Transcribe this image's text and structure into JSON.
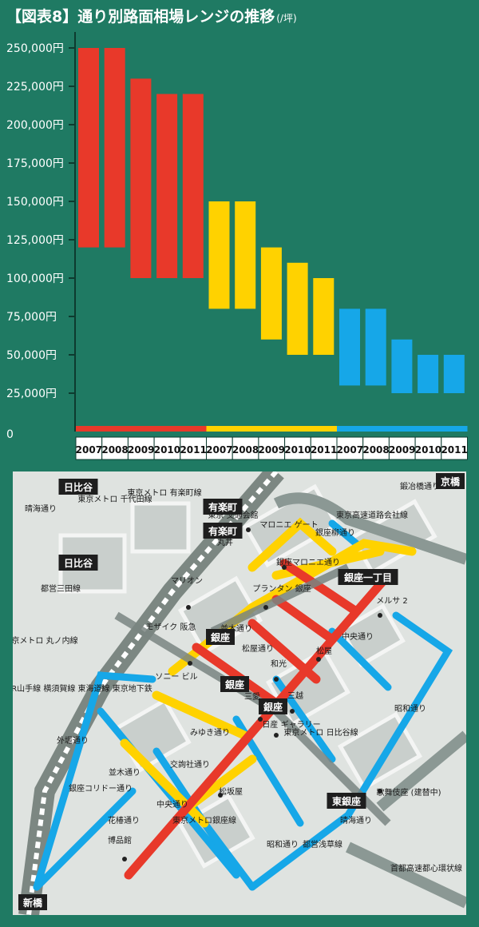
{
  "title": "【図表8】通り別路面相場レンジの推移",
  "title_unit": "(/坪)",
  "colors": {
    "background": "#1f7a63",
    "group_red": "#e8392a",
    "group_yellow": "#ffd200",
    "group_blue": "#16a7e8",
    "axis": "#0d3b2f",
    "text": "#ffffff"
  },
  "chart_data": {
    "type": "range-bar",
    "title": "【図表8】通り別路面相場レンジの推移",
    "unit": "(/坪)",
    "y_ticks": [
      "0",
      "25,000円",
      "50,000円",
      "75,000円",
      "100,000円",
      "125,000円",
      "150,000円",
      "175,000円",
      "200,000円",
      "225,000円",
      "250,000円"
    ],
    "y_tick_values": [
      0,
      25000,
      50000,
      75000,
      100000,
      125000,
      150000,
      175000,
      200000,
      225000,
      250000
    ],
    "ylim": [
      0,
      260000
    ],
    "categories": [
      "2007",
      "2008",
      "2009",
      "2010",
      "2011",
      "2007",
      "2008",
      "2009",
      "2010",
      "2011",
      "2007",
      "2008",
      "2009",
      "2010",
      "2011"
    ],
    "series": [
      {
        "color_key": "group_red",
        "years": [
          "2007",
          "2008",
          "2009",
          "2010",
          "2011"
        ],
        "low": [
          120000,
          120000,
          100000,
          100000,
          100000
        ],
        "high": [
          250000,
          250000,
          230000,
          220000,
          220000
        ]
      },
      {
        "color_key": "group_yellow",
        "years": [
          "2007",
          "2008",
          "2009",
          "2010",
          "2011"
        ],
        "low": [
          80000,
          80000,
          60000,
          50000,
          50000
        ],
        "high": [
          150000,
          150000,
          120000,
          110000,
          100000
        ]
      },
      {
        "color_key": "group_blue",
        "years": [
          "2007",
          "2008",
          "2009",
          "2010",
          "2011"
        ],
        "low": [
          30000,
          30000,
          25000,
          25000,
          25000
        ],
        "high": [
          80000,
          80000,
          60000,
          50000,
          50000
        ]
      }
    ]
  },
  "map": {
    "labels": [
      {
        "text": "日比谷",
        "boxed": true
      },
      {
        "text": "日比谷",
        "boxed": true
      },
      {
        "text": "有楽町",
        "boxed": true
      },
      {
        "text": "有楽町",
        "boxed": true
      },
      {
        "text": "銀座一丁目",
        "boxed": true
      },
      {
        "text": "銀座",
        "boxed": true
      },
      {
        "text": "銀座",
        "boxed": true
      },
      {
        "text": "銀座",
        "boxed": true
      },
      {
        "text": "東銀座",
        "boxed": true
      },
      {
        "text": "京橋",
        "boxed": true
      },
      {
        "text": "新橋",
        "boxed": true
      },
      {
        "text": "晴海通り",
        "boxed": false
      },
      {
        "text": "東京メトロ 千代田線",
        "boxed": false
      },
      {
        "text": "東京メトロ 有楽町線",
        "boxed": false
      },
      {
        "text": "鍛冶橋通り",
        "boxed": false
      },
      {
        "text": "東京高速道路会社線",
        "boxed": false
      },
      {
        "text": "東京 交通会館",
        "boxed": false
      },
      {
        "text": "丸井",
        "boxed": false
      },
      {
        "text": "マリオン",
        "boxed": false
      },
      {
        "text": "マロニエ ゲート",
        "boxed": false
      },
      {
        "text": "銀座柳通り",
        "boxed": false
      },
      {
        "text": "銀座マロニエ通り",
        "boxed": false
      },
      {
        "text": "プランタン 銀座",
        "boxed": false
      },
      {
        "text": "メルサ 2",
        "boxed": false
      },
      {
        "text": "中央通り",
        "boxed": false
      },
      {
        "text": "東京メトロ 丸ノ内線",
        "boxed": false
      },
      {
        "text": "都営三田線",
        "boxed": false
      },
      {
        "text": "モザイク 阪急",
        "boxed": false
      },
      {
        "text": "並木通り",
        "boxed": false
      },
      {
        "text": "松屋通り",
        "boxed": false
      },
      {
        "text": "松屋",
        "boxed": false
      },
      {
        "text": "ソニー ビル",
        "boxed": false
      },
      {
        "text": "和光",
        "boxed": false
      },
      {
        "text": "三愛",
        "boxed": false
      },
      {
        "text": "三越",
        "boxed": false
      },
      {
        "text": "JR山手線 横須賀線 東海道線 東京地下鉄",
        "boxed": false
      },
      {
        "text": "昭和通り",
        "boxed": false
      },
      {
        "text": "外堀通り",
        "boxed": false
      },
      {
        "text": "みゆき通り",
        "boxed": false
      },
      {
        "text": "日産 ギャラリー",
        "boxed": false
      },
      {
        "text": "東京メトロ 日比谷線",
        "boxed": false
      },
      {
        "text": "銀座コリドー通り",
        "boxed": false
      },
      {
        "text": "並木通り",
        "boxed": false
      },
      {
        "text": "交詢社通り",
        "boxed": false
      },
      {
        "text": "中央通り",
        "boxed": false
      },
      {
        "text": "東京メトロ銀座線",
        "boxed": false
      },
      {
        "text": "松坂屋",
        "boxed": false
      },
      {
        "text": "歌舞伎座 (建替中)",
        "boxed": false
      },
      {
        "text": "晴海通り",
        "boxed": false
      },
      {
        "text": "首都高速都心環状線",
        "boxed": false
      },
      {
        "text": "花椿通り",
        "boxed": false
      },
      {
        "text": "博品館",
        "boxed": false
      },
      {
        "text": "昭和通り",
        "boxed": false
      },
      {
        "text": "都営浅草線",
        "boxed": false
      }
    ]
  }
}
